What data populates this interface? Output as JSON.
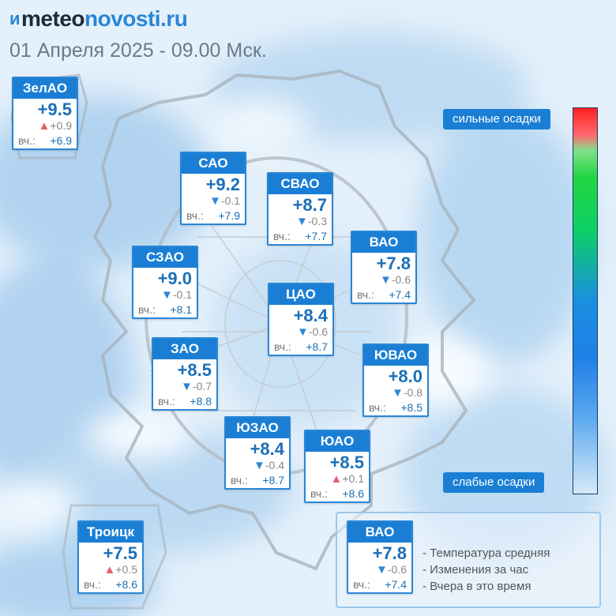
{
  "brand": {
    "mark": "ᴎ",
    "part1": "meteo",
    "part2": "novosti.ru"
  },
  "subtitle": "01 Апреля 2025 - 09.00 Мск.",
  "yesterday_label": "вч.:",
  "colors": {
    "header_blue": "#1a7fd4",
    "temp_blue": "#1a6fb8",
    "down_arrow": "#2d86d6",
    "up_arrow": "#e8606a"
  },
  "districts": [
    {
      "id": "zelao",
      "name": "ЗелАО",
      "temp": "+9.5",
      "dir": "up",
      "change": "+0.9",
      "yesterday": "+6.9"
    },
    {
      "id": "sao",
      "name": "САО",
      "temp": "+9.2",
      "dir": "down",
      "change": "-0.1",
      "yesterday": "+7.9"
    },
    {
      "id": "svao",
      "name": "СВАО",
      "temp": "+8.7",
      "dir": "down",
      "change": "-0.3",
      "yesterday": "+7.7"
    },
    {
      "id": "vao",
      "name": "ВАО",
      "temp": "+7.8",
      "dir": "down",
      "change": "-0.6",
      "yesterday": "+7.4"
    },
    {
      "id": "szao",
      "name": "СЗАО",
      "temp": "+9.0",
      "dir": "down",
      "change": "-0.1",
      "yesterday": "+8.1"
    },
    {
      "id": "cao",
      "name": "ЦАО",
      "temp": "+8.4",
      "dir": "down",
      "change": "-0.6",
      "yesterday": "+8.7"
    },
    {
      "id": "zao",
      "name": "ЗАО",
      "temp": "+8.5",
      "dir": "down",
      "change": "-0.7",
      "yesterday": "+8.8"
    },
    {
      "id": "yuvao",
      "name": "ЮВАО",
      "temp": "+8.0",
      "dir": "down",
      "change": "-0.8",
      "yesterday": "+8.5"
    },
    {
      "id": "yuzao",
      "name": "ЮЗАО",
      "temp": "+8.4",
      "dir": "down",
      "change": "-0.4",
      "yesterday": "+8.7"
    },
    {
      "id": "yuao",
      "name": "ЮАО",
      "temp": "+8.5",
      "dir": "up",
      "change": "+0.1",
      "yesterday": "+8.6"
    },
    {
      "id": "troitsk",
      "name": "Троицк",
      "temp": "+7.5",
      "dir": "up",
      "change": "+0.5",
      "yesterday": "+8.6"
    }
  ],
  "scale": {
    "top_label": "сильные осадки",
    "bottom_label": "слабые осадки"
  },
  "legend": {
    "sample": {
      "name": "ВАО",
      "temp": "+7.8",
      "dir": "down",
      "change": "-0.6",
      "yesterday": "+7.4"
    },
    "line1": "- Температура средняя",
    "line2": "- Изменения за час",
    "line3": "- Вчера в это время"
  }
}
